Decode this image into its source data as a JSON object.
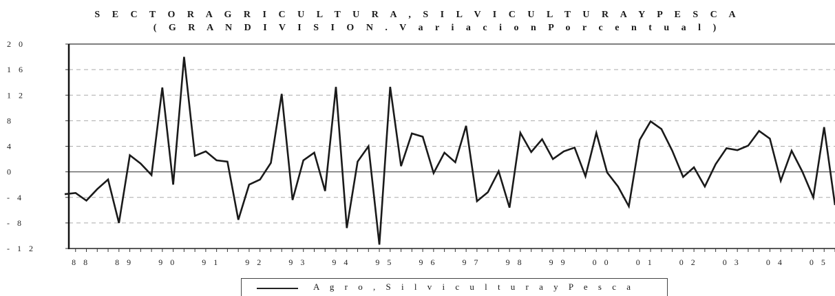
{
  "chart_data": {
    "type": "line",
    "title": "S E C T O R  A G R I C U L T U R A , S I L V I C U L T U R A  Y  P E S C A",
    "subtitle": "( G R A N  D I V I S I O N . V a r i a c i o n  P o r c e n t u a l )",
    "ylim": [
      -12,
      20
    ],
    "yticks": [
      20,
      16,
      12,
      8,
      4,
      0,
      -4,
      -8,
      -12
    ],
    "ytick_labels": [
      "2 0",
      "1 6",
      "1 2",
      "8",
      "4",
      "0",
      "- 4",
      "- 8",
      "- 1 2"
    ],
    "x_tick_labels": [
      "8 8",
      "8 9",
      "9 0",
      "9 1",
      "9 2",
      "9 3",
      "9 4",
      "9 5",
      "9 6",
      "9 7",
      "9 8",
      "9 9",
      "0 0",
      "0 1",
      "0 2",
      "0 3",
      "0 4",
      "0 5"
    ],
    "grid": "horizontal-dashed",
    "legend_position": "bottom",
    "series": [
      {
        "name": "A g r o , S i l v i c u l t u r a y P e s c a",
        "values": [
          -3.5,
          -3.3,
          -4.5,
          -2.7,
          -1.2,
          -8.0,
          2.6,
          1.3,
          -0.5,
          13.2,
          -2.0,
          18.0,
          2.5,
          3.2,
          1.8,
          1.6,
          -7.5,
          -2.0,
          -1.2,
          1.4,
          12.2,
          -4.4,
          1.8,
          3.0,
          -3.0,
          13.3,
          -8.8,
          1.6,
          4.0,
          -11.4,
          13.3,
          0.9,
          6.0,
          5.5,
          -0.2,
          3.0,
          1.5,
          7.2,
          -4.6,
          -3.2,
          0.1,
          -5.6,
          6.1,
          3.1,
          5.1,
          2.0,
          3.2,
          3.8,
          -0.7,
          6.1,
          -0.1,
          -2.3,
          -5.4,
          5.0,
          7.9,
          6.7,
          3.3,
          -0.8,
          0.7,
          -2.3,
          1.2,
          3.7,
          3.4,
          4.1,
          6.4,
          5.2,
          -1.4,
          3.3,
          0.0,
          -4.0,
          7.0,
          -5.2
        ]
      }
    ]
  }
}
